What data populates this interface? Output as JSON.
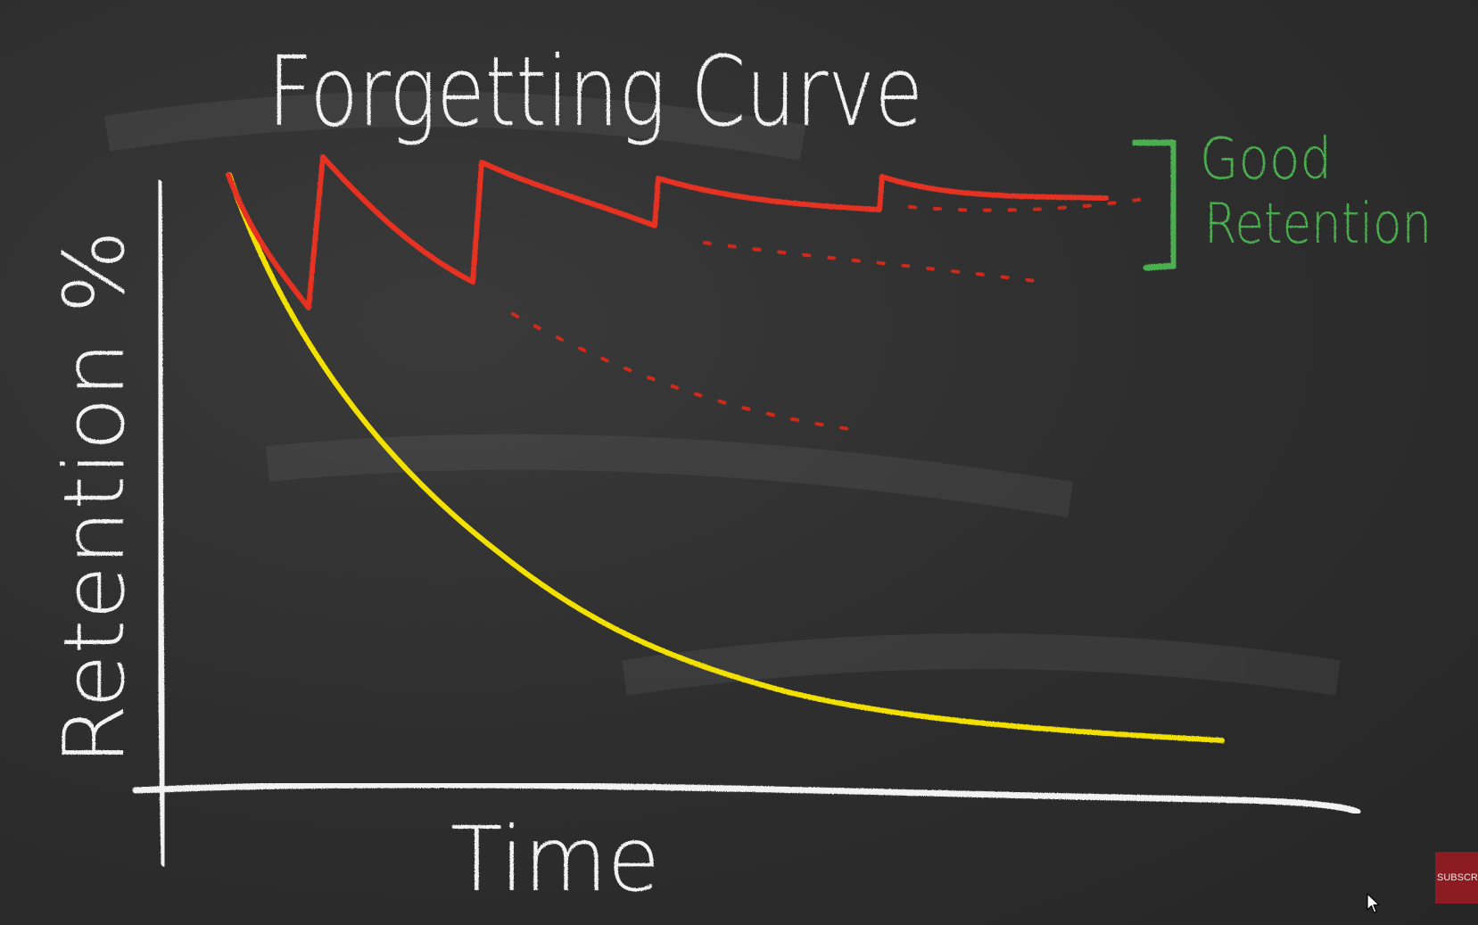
{
  "title": "Forgetting Curve",
  "axes": {
    "y_label": "Retention %",
    "x_label": "Time"
  },
  "annotation": {
    "line1": "Good",
    "line2": "Retention",
    "color": "#4caf50"
  },
  "colors": {
    "background": "#2b2b2b",
    "chalk": "#f2f2f2",
    "forgetting_curve": "#f2e000",
    "review_curve": "#e53020"
  },
  "subscribe_button": {
    "label": "SUBSCRIBE"
  },
  "icons": {
    "cursor": "mouse-pointer-icon"
  }
}
